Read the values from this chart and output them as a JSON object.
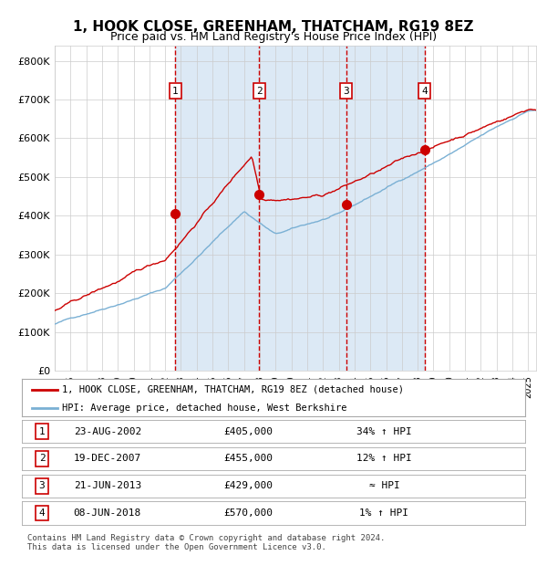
{
  "title": "1, HOOK CLOSE, GREENHAM, THATCHAM, RG19 8EZ",
  "subtitle": "Price paid vs. HM Land Registry's House Price Index (HPI)",
  "title_fontsize": 11,
  "subtitle_fontsize": 9,
  "bg_color": "#dce9f5",
  "plot_bg_color": "#ffffff",
  "ylabel_ticks": [
    "£0",
    "£100K",
    "£200K",
    "£300K",
    "£400K",
    "£500K",
    "£600K",
    "£700K",
    "£800K"
  ],
  "ytick_values": [
    0,
    100000,
    200000,
    300000,
    400000,
    500000,
    600000,
    700000,
    800000
  ],
  "ylim": [
    0,
    840000
  ],
  "xlim_start": 1995.0,
  "xlim_end": 2025.5,
  "sale_dates_num": [
    2002.644,
    2007.962,
    2013.472,
    2018.436
  ],
  "sale_prices": [
    405000,
    455000,
    429000,
    570000
  ],
  "sale_labels": [
    "1",
    "2",
    "3",
    "4"
  ],
  "red_line_color": "#cc0000",
  "blue_line_color": "#7ab0d4",
  "sale_dot_color": "#cc0000",
  "vline_color": "#cc0000",
  "shade_color": "#dce9f5",
  "legend_items": [
    "1, HOOK CLOSE, GREENHAM, THATCHAM, RG19 8EZ (detached house)",
    "HPI: Average price, detached house, West Berkshire"
  ],
  "table_rows": [
    [
      "1",
      "23-AUG-2002",
      "£405,000",
      "34% ↑ HPI"
    ],
    [
      "2",
      "19-DEC-2007",
      "£455,000",
      "12% ↑ HPI"
    ],
    [
      "3",
      "21-JUN-2013",
      "£429,000",
      "≈ HPI"
    ],
    [
      "4",
      "08-JUN-2018",
      "£570,000",
      "1% ↑ HPI"
    ]
  ],
  "footnote": "Contains HM Land Registry data © Crown copyright and database right 2024.\nThis data is licensed under the Open Government Licence v3.0."
}
